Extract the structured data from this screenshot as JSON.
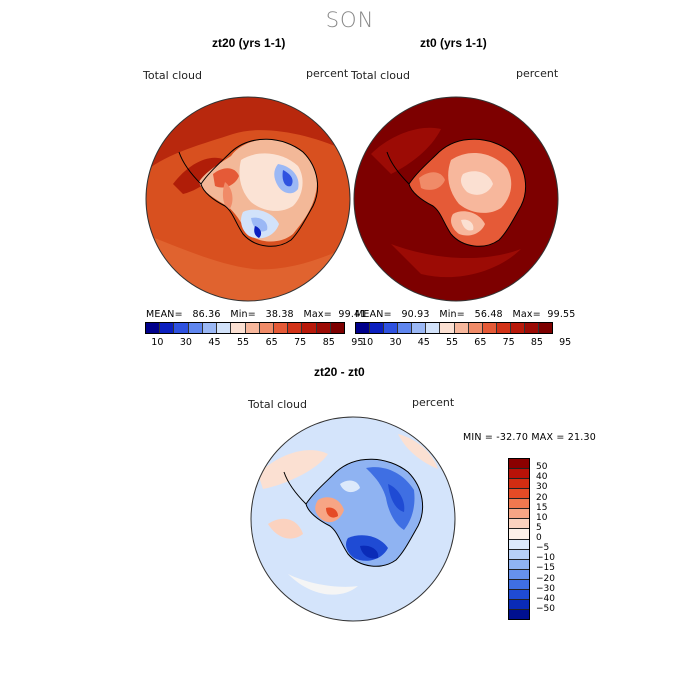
{
  "page": {
    "title": "SON"
  },
  "panels": [
    {
      "title": "zt20 (yrs 1-1)",
      "field_label": "Total cloud",
      "unit_label": "percent",
      "stats": {
        "mean_label": "MEAN=",
        "mean": "86.36",
        "min_label": "Min=",
        "min": "38.38",
        "max_label": "Max=",
        "max": "99.41"
      }
    },
    {
      "title": "zt0 (yrs 1-1)",
      "field_label": "Total cloud",
      "unit_label": "percent",
      "stats": {
        "mean_label": "MEAN=",
        "mean": "90.93",
        "min_label": "Min=",
        "min": "56.48",
        "max_label": "Max=",
        "max": "99.55"
      }
    }
  ],
  "abs_colorbar": {
    "ticks": [
      "10",
      "30",
      "45",
      "55",
      "65",
      "75",
      "85",
      "95"
    ],
    "colors": [
      "#00008b",
      "#0b1fbf",
      "#2f52e0",
      "#5f86ef",
      "#9bb8f5",
      "#d2e2fa",
      "#fbe0d2",
      "#f7b79c",
      "#f08b68",
      "#e55a37",
      "#d23217",
      "#b8190a",
      "#9c0b05",
      "#7d0000"
    ]
  },
  "diff_panel": {
    "title": "zt20 - zt0",
    "field_label": "Total cloud",
    "unit_label": "percent",
    "minmax": "MIN = -32.70 MAX =  21.30"
  },
  "diff_colorbar": {
    "labels": [
      "50",
      "40",
      "30",
      "20",
      "15",
      "10",
      "5",
      "0",
      "−5",
      "−10",
      "−15",
      "−20",
      "−30",
      "−40",
      "−50"
    ],
    "colors": [
      "#8b0000",
      "#b81208",
      "#d22d12",
      "#e54b26",
      "#f0784f",
      "#f7a585",
      "#fbd2bf",
      "#fdf0e8",
      "#dce9fb",
      "#b7d0f7",
      "#8fb3f2",
      "#6691ec",
      "#3f6fe3",
      "#1f4bd4",
      "#0a2bb8",
      "#00108f"
    ]
  },
  "colors": {
    "antarctica_high": "#7d0000",
    "ocean_high": "#c42a10",
    "low_cloud": "#3a68e0",
    "coast": "#000000"
  }
}
